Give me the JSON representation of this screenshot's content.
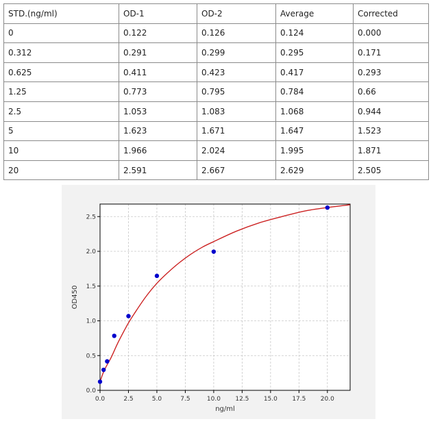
{
  "table": {
    "headers": [
      "STD.(ng/ml)",
      "OD-1",
      "OD-2",
      "Average",
      "Corrected"
    ],
    "rows": [
      [
        "0",
        "0.122",
        "0.126",
        "0.124",
        "0.000"
      ],
      [
        "0.312",
        "0.291",
        "0.299",
        "0.295",
        "0.171"
      ],
      [
        "0.625",
        "0.411",
        "0.423",
        "0.417",
        "0.293"
      ],
      [
        "1.25",
        "0.773",
        "0.795",
        "0.784",
        "0.66"
      ],
      [
        "2.5",
        "1.053",
        "1.083",
        "1.068",
        "0.944"
      ],
      [
        "5",
        "1.623",
        "1.671",
        "1.647",
        "1.523"
      ],
      [
        "10",
        "1.966",
        "2.024",
        "1.995",
        "1.871"
      ],
      [
        "20",
        "2.591",
        "2.667",
        "2.629",
        "2.505"
      ]
    ]
  },
  "chart_data": {
    "type": "scatter",
    "title": "",
    "xlabel": "ng/ml",
    "ylabel": "OD450",
    "xlim": [
      0,
      22
    ],
    "ylim": [
      0,
      2.68
    ],
    "xticks": [
      0.0,
      2.5,
      5.0,
      7.5,
      10.0,
      12.5,
      15.0,
      17.5,
      20.0
    ],
    "xtick_labels": [
      "0.0",
      "2.5",
      "5.0",
      "7.5",
      "10.0",
      "12.5",
      "15.0",
      "17.5",
      "20.0"
    ],
    "yticks": [
      0.0,
      0.5,
      1.0,
      1.5,
      2.0,
      2.5
    ],
    "ytick_labels": [
      "0.0",
      "0.5",
      "1.0",
      "1.5",
      "2.0",
      "2.5"
    ],
    "grid": true,
    "series": [
      {
        "kind": "points",
        "color": "#0000cc",
        "x": [
          0,
          0.312,
          0.625,
          1.25,
          2.5,
          5,
          10,
          20
        ],
        "y": [
          0.124,
          0.295,
          0.417,
          0.784,
          1.068,
          1.647,
          1.995,
          2.629
        ]
      },
      {
        "kind": "curve",
        "color": "#cc2222",
        "x": [
          0,
          0.25,
          0.5,
          1,
          1.5,
          2,
          2.5,
          3,
          4,
          5,
          6,
          7,
          8,
          9,
          10,
          12,
          14,
          16,
          18,
          20,
          22
        ],
        "y": [
          0.124,
          0.24,
          0.33,
          0.48,
          0.66,
          0.82,
          0.97,
          1.1,
          1.34,
          1.54,
          1.7,
          1.84,
          1.96,
          2.06,
          2.14,
          2.29,
          2.41,
          2.5,
          2.58,
          2.63,
          2.67
        ]
      }
    ]
  }
}
